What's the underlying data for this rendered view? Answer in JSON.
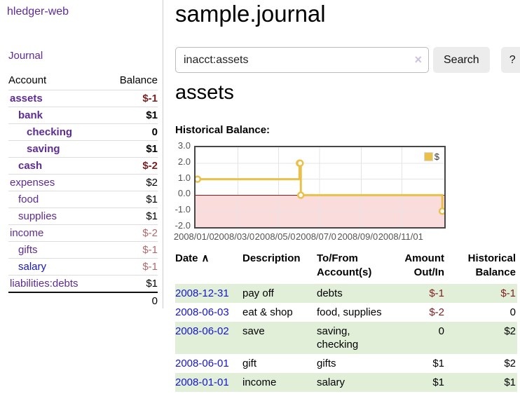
{
  "app": {
    "brand": "hledger-web"
  },
  "sidebar": {
    "journal_link": "Journal",
    "header": {
      "account": "Account",
      "balance": "Balance"
    },
    "accounts": [
      {
        "name": "assets",
        "balance": "$-1"
      },
      {
        "name": "bank",
        "balance": "$1"
      },
      {
        "name": "checking",
        "balance": "0"
      },
      {
        "name": "saving",
        "balance": "$1"
      },
      {
        "name": "cash",
        "balance": "$-2"
      },
      {
        "name": "expenses",
        "balance": "$2"
      },
      {
        "name": "food",
        "balance": "$1"
      },
      {
        "name": "supplies",
        "balance": "$1"
      },
      {
        "name": "income",
        "balance": "$-2"
      },
      {
        "name": "gifts",
        "balance": "$-1"
      },
      {
        "name": "salary",
        "balance": "$-1"
      },
      {
        "name": "liabilities:debts",
        "balance": "$1"
      }
    ],
    "total": "0"
  },
  "main": {
    "title": "sample.journal",
    "search": {
      "value": "inacct:assets",
      "clear": "×",
      "search_button": "Search",
      "help_button": "?"
    },
    "account_title": "assets",
    "chart_label": "Historical Balance:"
  },
  "chart_data": {
    "type": "line",
    "step": true,
    "title": "Historical Balance",
    "series": [
      {
        "name": "$",
        "color": "#e8c04a",
        "points": [
          {
            "x": "2008-01-01",
            "y": 1
          },
          {
            "x": "2008-06-01",
            "y": 2
          },
          {
            "x": "2008-06-02",
            "y": 2
          },
          {
            "x": "2008-06-03",
            "y": 0
          },
          {
            "x": "2008-12-31",
            "y": -1
          }
        ]
      }
    ],
    "ylim": [
      -2,
      3
    ],
    "xlim": [
      "2007-12-29",
      "2009-01-03"
    ],
    "y_ticks": [
      {
        "label": "3.0",
        "value": 3
      },
      {
        "label": "2.0",
        "value": 2
      },
      {
        "label": "1.0",
        "value": 1
      },
      {
        "label": "0.0",
        "value": 0
      },
      {
        "label": "-1.0",
        "value": -1
      },
      {
        "label": "-2.0",
        "value": -2
      }
    ],
    "x_ticks": [
      {
        "label": "2008/01/01",
        "date": "2008-01-01"
      },
      {
        "label": "2008/03/01",
        "date": "2008-03-01"
      },
      {
        "label": "2008/05/01",
        "date": "2008-05-01"
      },
      {
        "label": "2008/07/01",
        "date": "2008-07-01"
      },
      {
        "label": "2008/09/01",
        "date": "2008-09-01"
      },
      {
        "label": "2008/11/01",
        "date": "2008-11-01"
      }
    ],
    "legend": {
      "label": "$",
      "position": "top-right"
    },
    "grid": true,
    "negative_region_color": "#fbdcdc",
    "zero_line_color": "#8c1717"
  },
  "register": {
    "columns": {
      "date": "Date",
      "sort_indicator": "∧",
      "description": "Description",
      "accounts": "To/From Account(s)",
      "amount": "Amount Out/In",
      "balance": "Historical Balance"
    },
    "rows": [
      {
        "date": "2008-12-31",
        "description": "pay off",
        "accounts": "debts",
        "amount": "$-1",
        "balance": "$-1"
      },
      {
        "date": "2008-06-03",
        "description": "eat & shop",
        "accounts": "food, supplies",
        "amount": "$-2",
        "balance": "0"
      },
      {
        "date": "2008-06-02",
        "description": "save",
        "accounts": "saving, checking",
        "amount": "0",
        "balance": "$2"
      },
      {
        "date": "2008-06-01",
        "description": "gift",
        "accounts": "gifts",
        "amount": "$1",
        "balance": "$2"
      },
      {
        "date": "2008-01-01",
        "description": "income",
        "accounts": "salary",
        "amount": "$1",
        "balance": "$1"
      }
    ]
  }
}
